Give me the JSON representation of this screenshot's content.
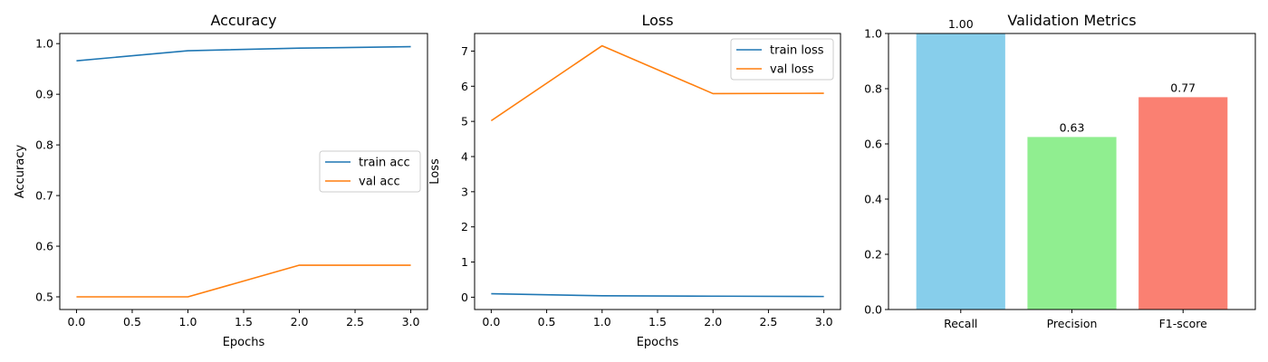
{
  "chart_data": [
    {
      "type": "line",
      "title": "Accuracy",
      "xlabel": "Epochs",
      "ylabel": "Accuracy",
      "x": [
        0,
        1,
        2,
        3
      ],
      "xlim": [
        -0.15,
        3.15
      ],
      "ylim": [
        0.475,
        1.02
      ],
      "xticks": [
        0.0,
        0.5,
        1.0,
        1.5,
        2.0,
        2.5,
        3.0
      ],
      "xtick_labels": [
        "0.0",
        "0.5",
        "1.0",
        "1.5",
        "2.0",
        "2.5",
        "3.0"
      ],
      "yticks": [
        0.5,
        0.6,
        0.7,
        0.8,
        0.9,
        1.0
      ],
      "ytick_labels": [
        "0.5",
        "0.6",
        "0.7",
        "0.8",
        "0.9",
        "1.0"
      ],
      "legend_position": "center-right",
      "grid": false,
      "series": [
        {
          "name": "train acc",
          "color": "#1f77b4",
          "values": [
            0.966,
            0.986,
            0.991,
            0.994
          ]
        },
        {
          "name": "val acc",
          "color": "#ff7f0e",
          "values": [
            0.5,
            0.5,
            0.5625,
            0.5625
          ]
        }
      ]
    },
    {
      "type": "line",
      "title": "Loss",
      "xlabel": "Epochs",
      "ylabel": "Loss",
      "x": [
        0,
        1,
        2,
        3
      ],
      "xlim": [
        -0.15,
        3.15
      ],
      "ylim": [
        -0.35,
        7.5
      ],
      "xticks": [
        0.0,
        0.5,
        1.0,
        1.5,
        2.0,
        2.5,
        3.0
      ],
      "xtick_labels": [
        "0.0",
        "0.5",
        "1.0",
        "1.5",
        "2.0",
        "2.5",
        "3.0"
      ],
      "yticks": [
        0,
        1,
        2,
        3,
        4,
        5,
        6,
        7
      ],
      "ytick_labels": [
        "0",
        "1",
        "2",
        "3",
        "4",
        "5",
        "6",
        "7"
      ],
      "legend_position": "upper-right",
      "grid": false,
      "series": [
        {
          "name": "train loss",
          "color": "#1f77b4",
          "values": [
            0.1,
            0.04,
            0.03,
            0.02
          ]
        },
        {
          "name": "val loss",
          "color": "#ff7f0e",
          "values": [
            5.02,
            7.15,
            5.79,
            5.8
          ]
        }
      ]
    },
    {
      "type": "bar",
      "title": "Validation Metrics",
      "categories": [
        "Recall",
        "Precision",
        "F1-score"
      ],
      "values": [
        1.0,
        0.625,
        0.7692
      ],
      "value_labels": [
        "1.00",
        "0.63",
        "0.77"
      ],
      "colors": [
        "#87ceeb",
        "#90ee90",
        "#fa8072"
      ],
      "ylim": [
        0,
        1.0
      ],
      "yticks": [
        0.0,
        0.2,
        0.4,
        0.6,
        0.8,
        1.0
      ],
      "ytick_labels": [
        "0.0",
        "0.2",
        "0.4",
        "0.6",
        "0.8",
        "1.0"
      ],
      "grid": false
    }
  ]
}
